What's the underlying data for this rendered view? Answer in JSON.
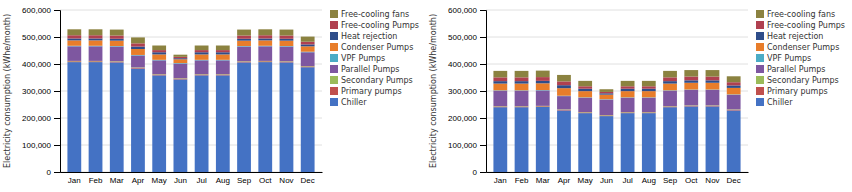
{
  "chart_data": [
    {
      "type": "bar",
      "stacked": true,
      "grid": true,
      "legend": "right",
      "ylabel": "Electricity consumption (kWhe/month)",
      "categories": [
        "Jan",
        "Feb",
        "Mar",
        "Apr",
        "May",
        "Jun",
        "Jul",
        "Aug",
        "Sep",
        "Oct",
        "Nov",
        "Dec"
      ],
      "ylim": [
        0,
        600000
      ],
      "yticks": [
        0,
        {
          "value": 100000,
          "label": "100,000"
        },
        {
          "value": 200000,
          "label": "200,000"
        },
        {
          "value": 300000,
          "label": "300,000"
        },
        {
          "value": 400000,
          "label": "400,000"
        },
        {
          "value": 500000,
          "label": "500,000"
        },
        {
          "value": 600000,
          "label": "600,000"
        }
      ],
      "series": [
        {
          "name": "Chiller",
          "color": "#4472c4",
          "values": [
            407000,
            407000,
            406000,
            383000,
            358000,
            343000,
            358000,
            358000,
            406000,
            407000,
            406000,
            388000
          ]
        },
        {
          "name": "Primary pumps",
          "color": "#c0504d",
          "values": [
            3000,
            3000,
            3000,
            3000,
            3000,
            3000,
            3000,
            3000,
            3000,
            3000,
            3000,
            3000
          ]
        },
        {
          "name": "Secondary Pumps",
          "color": "#9bbb59",
          "values": [
            1500,
            1500,
            1500,
            1500,
            1500,
            1500,
            1500,
            1500,
            1500,
            1500,
            1500,
            1500
          ]
        },
        {
          "name": "Parallel Pumps",
          "color": "#7e57a0",
          "values": [
            54000,
            54000,
            54000,
            44000,
            51000,
            54000,
            51000,
            51000,
            54000,
            54000,
            54000,
            51000
          ]
        },
        {
          "name": "VPF Pumps",
          "color": "#4bacc6",
          "values": [
            2000,
            2000,
            2000,
            2000,
            2000,
            2000,
            2000,
            2000,
            2000,
            2000,
            2000,
            2000
          ]
        },
        {
          "name": "Condenser Pumps",
          "color": "#e87d2a",
          "values": [
            20000,
            20000,
            20000,
            22000,
            20000,
            14000,
            20000,
            20000,
            20000,
            20000,
            20000,
            20000
          ]
        },
        {
          "name": "Heat rejection",
          "color": "#2e4d8a",
          "values": [
            7000,
            7000,
            7000,
            9000,
            8000,
            4000,
            8000,
            8000,
            7000,
            7000,
            7000,
            7000
          ]
        },
        {
          "name": "Free-cooling Pumps",
          "color": "#b04050",
          "values": [
            12000,
            12000,
            12000,
            12000,
            8000,
            5000,
            8000,
            8000,
            12000,
            12000,
            12000,
            10000
          ]
        },
        {
          "name": "Free-cooling fans",
          "color": "#8b8240",
          "values": [
            22000,
            22000,
            22000,
            22000,
            17000,
            8000,
            17000,
            17000,
            22000,
            22000,
            22000,
            19000
          ]
        }
      ]
    },
    {
      "type": "bar",
      "stacked": true,
      "grid": true,
      "legend": "right",
      "ylabel": "Electricity consumption (kWhe/month)",
      "categories": [
        "Jan",
        "Feb",
        "Mar",
        "Apr",
        "May",
        "Jun",
        "Jul",
        "Aug",
        "Sep",
        "Oct",
        "Nov",
        "Dec"
      ],
      "ylim": [
        0,
        600000
      ],
      "yticks": [
        0,
        {
          "value": 100000,
          "label": "100,000"
        },
        {
          "value": 200000,
          "label": "200,000"
        },
        {
          "value": 300000,
          "label": "300,000"
        },
        {
          "value": 400000,
          "label": "400,000"
        },
        {
          "value": 500000,
          "label": "500,000"
        },
        {
          "value": 600000,
          "label": "600,000"
        }
      ],
      "series": [
        {
          "name": "Chiller",
          "color": "#4472c4",
          "values": [
            240000,
            240000,
            241000,
            228000,
            218000,
            207000,
            218000,
            218000,
            240000,
            243000,
            243000,
            228000
          ]
        },
        {
          "name": "Primary pumps",
          "color": "#c0504d",
          "values": [
            2500,
            2500,
            2500,
            2500,
            2500,
            2500,
            2500,
            2500,
            2500,
            2500,
            2500,
            2500
          ]
        },
        {
          "name": "Secondary Pumps",
          "color": "#9bbb59",
          "values": [
            1500,
            1500,
            1500,
            1500,
            1500,
            1500,
            1500,
            1500,
            1500,
            1500,
            1500,
            1500
          ]
        },
        {
          "name": "Parallel Pumps",
          "color": "#7e57a0",
          "values": [
            57000,
            57000,
            57000,
            49000,
            53000,
            57000,
            53000,
            53000,
            57000,
            57000,
            57000,
            54000
          ]
        },
        {
          "name": "VPF Pumps",
          "color": "#4bacc6",
          "values": [
            1500,
            1500,
            1500,
            1500,
            1500,
            1500,
            1500,
            1500,
            1500,
            1500,
            1500,
            1500
          ]
        },
        {
          "name": "Condenser Pumps",
          "color": "#e87d2a",
          "values": [
            25000,
            25000,
            25000,
            28000,
            23000,
            17000,
            23000,
            23000,
            25000,
            25000,
            25000,
            24000
          ]
        },
        {
          "name": "Heat rejection",
          "color": "#2e4d8a",
          "values": [
            9000,
            9000,
            9000,
            11000,
            9000,
            5000,
            9000,
            9000,
            9000,
            9000,
            9000,
            9000
          ]
        },
        {
          "name": "Free-cooling Pumps",
          "color": "#b04050",
          "values": [
            14000,
            14000,
            14000,
            14000,
            9000,
            5000,
            9000,
            9000,
            14000,
            14000,
            14000,
            12000
          ]
        },
        {
          "name": "Free-cooling fans",
          "color": "#8b8240",
          "values": [
            24000,
            24000,
            24000,
            24000,
            20000,
            10000,
            20000,
            20000,
            24000,
            24000,
            24000,
            22000
          ]
        }
      ]
    }
  ]
}
